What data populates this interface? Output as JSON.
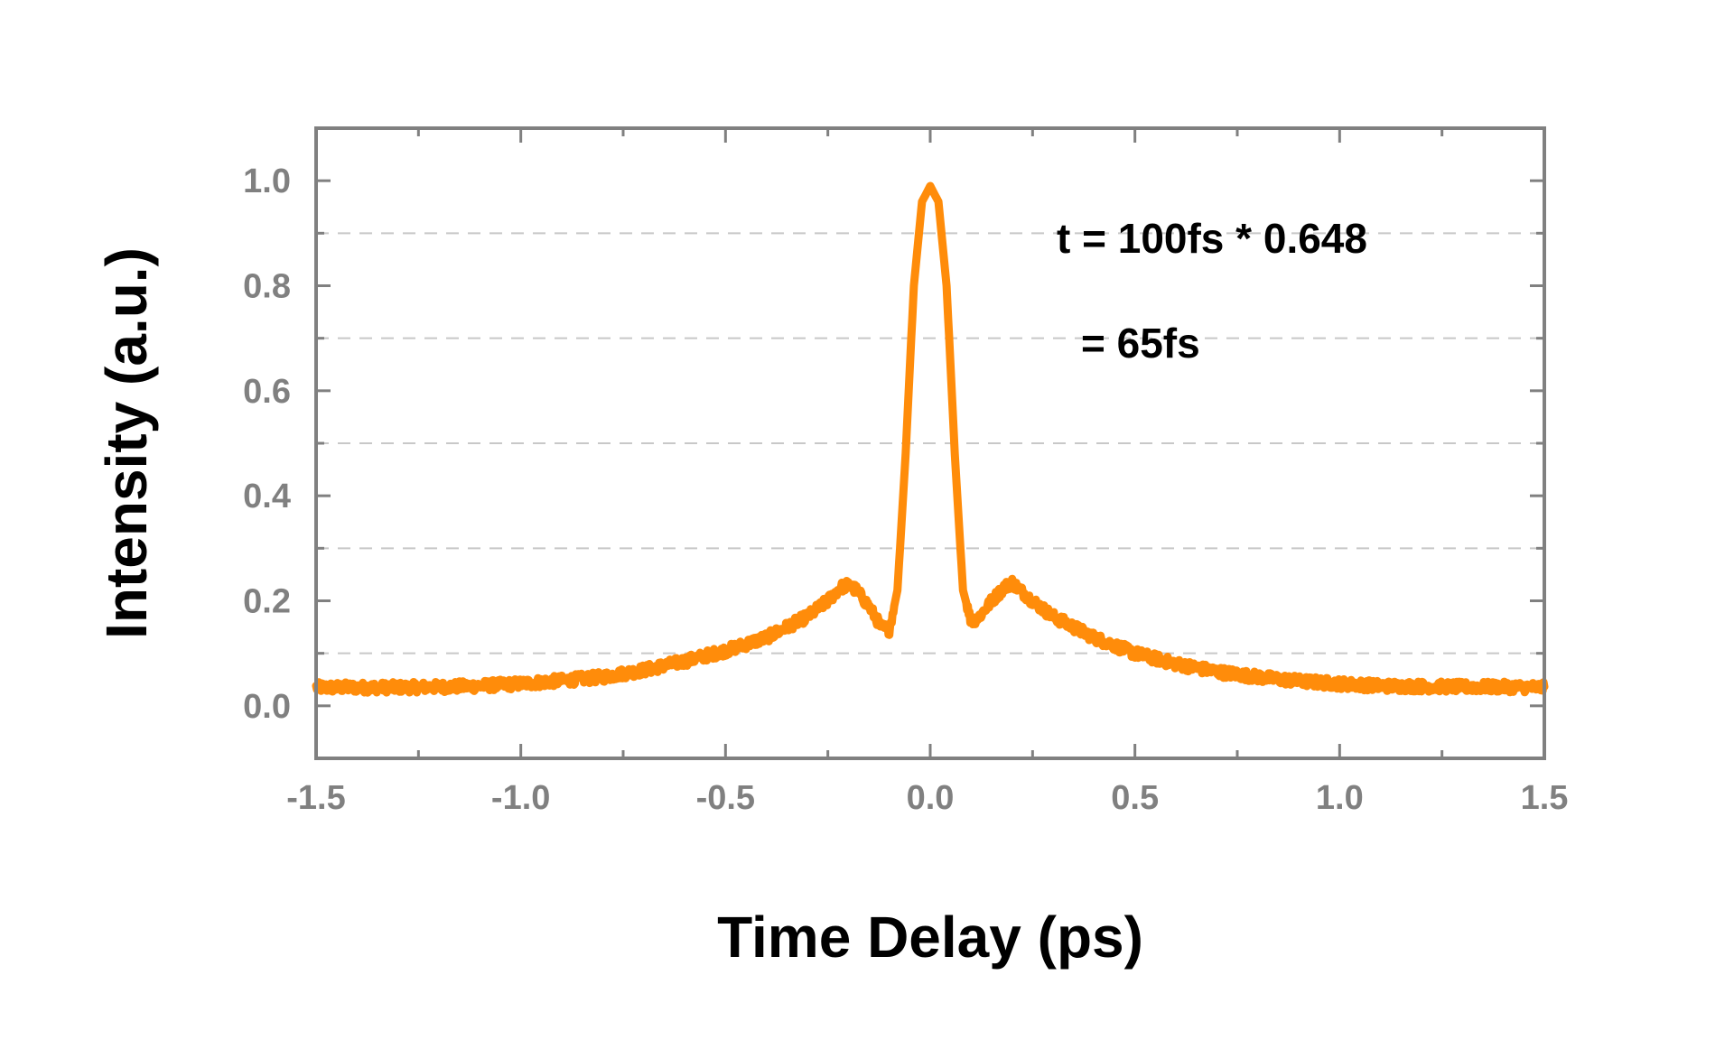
{
  "chart_data": {
    "type": "line",
    "title": "",
    "xlabel": "Time Delay (ps)",
    "ylabel": "Intensity (a.u.)",
    "xlim": [
      -1.5,
      1.5
    ],
    "ylim": [
      -0.1,
      1.1
    ],
    "x_ticks": [
      -1.5,
      -1.0,
      -0.5,
      0.0,
      0.5,
      1.0,
      1.5
    ],
    "x_tick_labels": [
      "-1.5",
      "-1.0",
      "-0.5",
      "0.0",
      "0.5",
      "1.0",
      "1.5"
    ],
    "x_minor_ticks": [
      -1.25,
      -0.75,
      -0.25,
      0.25,
      0.75,
      1.25
    ],
    "y_ticks": [
      0.0,
      0.2,
      0.4,
      0.6,
      0.8,
      1.0
    ],
    "y_tick_labels": [
      "0.0",
      "0.2",
      "0.4",
      "0.6",
      "0.8",
      "1.0"
    ],
    "y_minor_ticks": [
      0.1,
      0.3,
      0.5,
      0.7,
      0.9
    ],
    "grid": {
      "dashed_lines_at_y": [
        0.1,
        0.3,
        0.5,
        0.7,
        0.9
      ]
    },
    "annotations": [
      "t = 100fs * 0.648",
      "= 65fs"
    ],
    "colors": {
      "series": "#ff8c0a",
      "axis": "#808080",
      "grid": "#c8c8c8",
      "ticks_text": "#808080"
    },
    "series": [
      {
        "x": [
          -1.5,
          -1.4,
          -1.3,
          -1.2,
          -1.1,
          -1.0,
          -0.9,
          -0.8,
          -0.7,
          -0.6,
          -0.5,
          -0.4,
          -0.35,
          -0.3,
          -0.25,
          -0.22,
          -0.2,
          -0.18,
          -0.15,
          -0.12,
          -0.1,
          -0.08,
          -0.06,
          -0.04,
          -0.02,
          0.0,
          0.02,
          0.04,
          0.06,
          0.08,
          0.1,
          0.12,
          0.15,
          0.18,
          0.2,
          0.22,
          0.25,
          0.3,
          0.35,
          0.4,
          0.5,
          0.6,
          0.7,
          0.8,
          0.9,
          1.0,
          1.1,
          1.2,
          1.3,
          1.4,
          1.5
        ],
        "y": [
          0.035,
          0.035,
          0.035,
          0.036,
          0.038,
          0.042,
          0.048,
          0.055,
          0.068,
          0.085,
          0.105,
          0.13,
          0.15,
          0.17,
          0.2,
          0.225,
          0.23,
          0.22,
          0.19,
          0.15,
          0.145,
          0.22,
          0.48,
          0.8,
          0.96,
          0.99,
          0.96,
          0.8,
          0.48,
          0.22,
          0.16,
          0.17,
          0.2,
          0.225,
          0.235,
          0.22,
          0.2,
          0.17,
          0.15,
          0.13,
          0.1,
          0.08,
          0.065,
          0.055,
          0.047,
          0.042,
          0.038,
          0.037,
          0.036,
          0.036,
          0.035
        ]
      }
    ]
  }
}
